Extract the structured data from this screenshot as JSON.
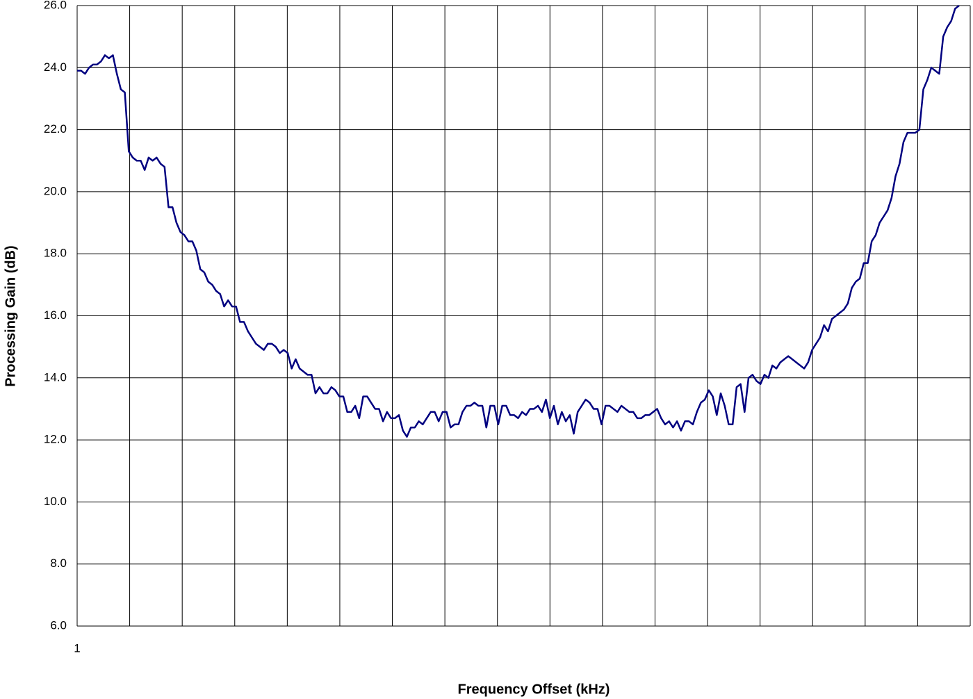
{
  "chart_data": {
    "type": "line",
    "x_label": "Frequency Offset (kHz)",
    "y_label": "Processing Gain (dB)",
    "ylim": [
      6,
      26
    ],
    "yticks": [
      {
        "value": 6,
        "label": "6.0"
      },
      {
        "value": 8,
        "label": "8.0"
      },
      {
        "value": 10,
        "label": "10.0"
      },
      {
        "value": 12,
        "label": "12.0"
      },
      {
        "value": 14,
        "label": "14.0"
      },
      {
        "value": 16,
        "label": "16.0"
      },
      {
        "value": 18,
        "label": "18.0"
      },
      {
        "value": 20,
        "label": "20.0"
      },
      {
        "value": 22,
        "label": "22.0"
      },
      {
        "value": 24,
        "label": "24.0"
      },
      {
        "value": 26,
        "label": "26.0"
      }
    ],
    "grid": true,
    "color": "#000080",
    "categories": [
      "1",
      null,
      null,
      null,
      null,
      null,
      null,
      null,
      null,
      null,
      null,
      null,
      null,
      null,
      null,
      null,
      null,
      null,
      null,
      null,
      null,
      null,
      null,
      null,
      null,
      null,
      null,
      null,
      null,
      null,
      null,
      null,
      null,
      null,
      null,
      null,
      null,
      null,
      null,
      null,
      null,
      null,
      null,
      null,
      null,
      null,
      null,
      null,
      null,
      null,
      null,
      null,
      null,
      null,
      null,
      null,
      null,
      null,
      null,
      null,
      null,
      null,
      null,
      null,
      null,
      null,
      null,
      null,
      null,
      null,
      null,
      null,
      null,
      null,
      null,
      null,
      null,
      null,
      null,
      null,
      null,
      null,
      null,
      null,
      null,
      null,
      null,
      null,
      null,
      null,
      null,
      null,
      null,
      null,
      null,
      null,
      null,
      null,
      null,
      null,
      null,
      null,
      null,
      null,
      null,
      null,
      null,
      null,
      null,
      null,
      null,
      null,
      null,
      null,
      null,
      null,
      null,
      null,
      null,
      null,
      null,
      null,
      null,
      null,
      null,
      null,
      null,
      null,
      null,
      null,
      null,
      null,
      null,
      null,
      null,
      null,
      null,
      null,
      null,
      null,
      null,
      null,
      null,
      null,
      null,
      null,
      null,
      null,
      null,
      null,
      null,
      null,
      null,
      null,
      null,
      null,
      null,
      null,
      null,
      null,
      null,
      null,
      null,
      null,
      null,
      null,
      null,
      null,
      null,
      null,
      null,
      null,
      null,
      null,
      null,
      null,
      null,
      null,
      null,
      null,
      null,
      null,
      null,
      null,
      null,
      null,
      null,
      null,
      null,
      null,
      null,
      null,
      null,
      null,
      null,
      null,
      null,
      null,
      null,
      null,
      null,
      null,
      null,
      null,
      null,
      null,
      null,
      null,
      null,
      null,
      null,
      null,
      null,
      null,
      null,
      null,
      null,
      null,
      null,
      null,
      null,
      null,
      null
    ],
    "values": [
      23.9,
      23.9,
      23.8,
      24.0,
      24.1,
      24.1,
      24.2,
      24.4,
      24.3,
      24.4,
      23.8,
      23.3,
      23.2,
      21.3,
      21.1,
      21.0,
      21.0,
      20.7,
      21.1,
      21.0,
      21.1,
      20.9,
      20.8,
      19.5,
      19.5,
      19.0,
      18.7,
      18.6,
      18.4,
      18.4,
      18.1,
      17.5,
      17.4,
      17.1,
      17.0,
      16.8,
      16.7,
      16.3,
      16.5,
      16.3,
      16.3,
      15.8,
      15.8,
      15.5,
      15.3,
      15.1,
      15.0,
      14.9,
      15.1,
      15.1,
      15.0,
      14.8,
      14.9,
      14.8,
      14.3,
      14.6,
      14.3,
      14.2,
      14.1,
      14.1,
      13.5,
      13.7,
      13.5,
      13.5,
      13.7,
      13.6,
      13.4,
      13.4,
      12.9,
      12.9,
      13.1,
      12.7,
      13.4,
      13.4,
      13.2,
      13.0,
      13.0,
      12.6,
      12.9,
      12.7,
      12.7,
      12.8,
      12.3,
      12.1,
      12.4,
      12.4,
      12.6,
      12.5,
      12.7,
      12.9,
      12.9,
      12.6,
      12.9,
      12.9,
      12.4,
      12.5,
      12.5,
      12.9,
      13.1,
      13.1,
      13.2,
      13.1,
      13.1,
      12.4,
      13.1,
      13.1,
      12.5,
      13.1,
      13.1,
      12.8,
      12.8,
      12.7,
      12.9,
      12.8,
      13.0,
      13.0,
      13.1,
      12.9,
      13.3,
      12.7,
      13.1,
      12.5,
      12.9,
      12.6,
      12.8,
      12.2,
      12.9,
      13.1,
      13.3,
      13.2,
      13.0,
      13.0,
      12.5,
      13.1,
      13.1,
      13.0,
      12.9,
      13.1,
      13.0,
      12.9,
      12.9,
      12.7,
      12.7,
      12.8,
      12.8,
      12.9,
      13.0,
      12.7,
      12.5,
      12.6,
      12.4,
      12.6,
      12.3,
      12.6,
      12.6,
      12.5,
      12.9,
      13.2,
      13.3,
      13.6,
      13.4,
      12.8,
      13.5,
      13.1,
      12.5,
      12.5,
      13.7,
      13.8,
      12.9,
      14.0,
      14.1,
      13.9,
      13.8,
      14.1,
      14.0,
      14.4,
      14.3,
      14.5,
      14.6,
      14.7,
      14.6,
      14.5,
      14.4,
      14.3,
      14.5,
      14.9,
      15.1,
      15.3,
      15.7,
      15.5,
      15.9,
      16.0,
      16.1,
      16.2,
      16.4,
      16.9,
      17.1,
      17.2,
      17.7,
      17.7,
      18.4,
      18.6,
      19.0,
      19.2,
      19.4,
      19.8,
      20.5,
      20.9,
      21.6,
      21.9,
      21.9,
      21.9,
      22.0,
      23.3,
      23.6,
      24.0,
      23.9,
      23.8,
      25.0,
      25.3,
      25.5,
      25.9,
      26.0
    ]
  }
}
